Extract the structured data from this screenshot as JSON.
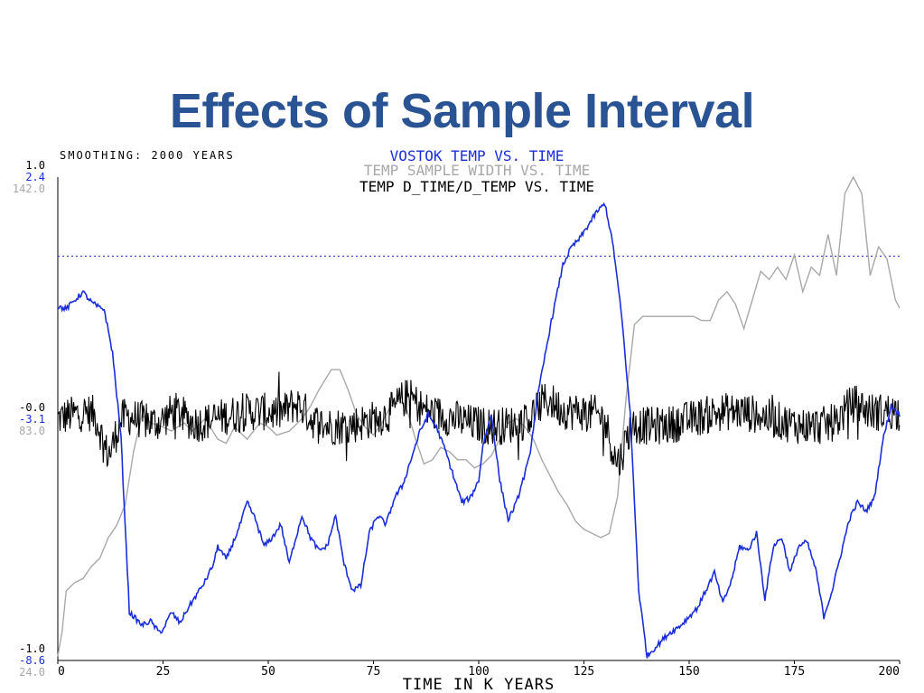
{
  "page": {
    "title": "Effects of Sample Interval"
  },
  "colors": {
    "title": "#2a5394",
    "temp": "#1a2ed8",
    "width": "#a8a8a8",
    "dtime_dtemp": "#000000",
    "dotted_reference": "#1a2ed8"
  },
  "chart_data": {
    "type": "line",
    "smoothing_label": "SMOOTHING: 2000 YEARS",
    "xlabel": "TIME IN K YEARS",
    "xlim": [
      0,
      200
    ],
    "x_ticks": [
      "0",
      "25",
      "50",
      "75",
      "100",
      "125",
      "150",
      "175",
      "200"
    ],
    "legend": [
      "VOSTOK TEMP VS. TIME",
      "TEMP SAMPLE WIDTH VS. TIME",
      "TEMP D_TIME/D_TEMP VS. TIME"
    ],
    "y_axis_labels": {
      "top": [
        "1.0",
        "2.4",
        "142.0"
      ],
      "middle": [
        "-0.0",
        "-3.1",
        "83.0"
      ],
      "bottom": [
        "-1.0",
        "-8.6",
        "24.0"
      ]
    },
    "reference_line_y": 0.6,
    "series": [
      {
        "name": "VOSTOK TEMP VS. TIME",
        "ylim": [
          -8.6,
          2.4
        ],
        "x": [
          0,
          2,
          4,
          6,
          8,
          10,
          11,
          13,
          15,
          17,
          20,
          22,
          24,
          25,
          27,
          29,
          31,
          33,
          35,
          37,
          38,
          40,
          43,
          45,
          47,
          49,
          51,
          53,
          55,
          56,
          58,
          60,
          62,
          64,
          66,
          68,
          70,
          72,
          74,
          76,
          78,
          80,
          82,
          84,
          86,
          88,
          90,
          92,
          94,
          96,
          98,
          100,
          101,
          103,
          105,
          107,
          109,
          112,
          114,
          117,
          120,
          122,
          124,
          126,
          128,
          130,
          132,
          134,
          136,
          138,
          140,
          143,
          145,
          148,
          150,
          152,
          154,
          156,
          158,
          160,
          162,
          164,
          166,
          168,
          170,
          172,
          174,
          176,
          178,
          180,
          182,
          184,
          186,
          188,
          190,
          192,
          194,
          196,
          198,
          200
        ],
        "y": [
          -0.55,
          -0.6,
          -0.4,
          -0.22,
          -0.45,
          -0.58,
          -0.6,
          -1.6,
          -3.5,
          -7.5,
          -7.8,
          -7.7,
          -7.95,
          -7.9,
          -7.5,
          -7.75,
          -7.4,
          -7.1,
          -6.8,
          -6.4,
          -6.0,
          -6.3,
          -5.6,
          -5.0,
          -5.4,
          -6.0,
          -5.8,
          -5.5,
          -6.4,
          -6.0,
          -5.3,
          -5.8,
          -6.1,
          -6.0,
          -5.3,
          -6.4,
          -7.0,
          -6.9,
          -5.7,
          -5.3,
          -5.5,
          -4.9,
          -4.6,
          -4.0,
          -3.4,
          -3.0,
          -3.3,
          -3.8,
          -4.4,
          -5.0,
          -4.9,
          -4.5,
          -3.7,
          -3.0,
          -4.5,
          -5.4,
          -5.0,
          -4.0,
          -2.6,
          -1.0,
          0.4,
          0.8,
          1.0,
          1.3,
          1.6,
          1.8,
          0.8,
          -0.8,
          -3.0,
          -7.0,
          -8.5,
          -8.2,
          -8.0,
          -7.8,
          -7.6,
          -7.4,
          -7.0,
          -6.6,
          -7.3,
          -6.8,
          -6.0,
          -6.1,
          -5.7,
          -7.2,
          -6.0,
          -5.8,
          -6.6,
          -6.0,
          -5.9,
          -6.5,
          -7.6,
          -7.0,
          -6.2,
          -5.4,
          -5.0,
          -5.2,
          -4.9,
          -3.6,
          -2.8,
          -3.0
        ]
      },
      {
        "name": "TEMP SAMPLE WIDTH VS. TIME",
        "ylim": [
          24.0,
          142.0
        ],
        "x": [
          0,
          1,
          2,
          4,
          6,
          8,
          10,
          12,
          14,
          16,
          18,
          20,
          22,
          25,
          27,
          30,
          32,
          35,
          38,
          40,
          42,
          45,
          48,
          50,
          52,
          55,
          58,
          60,
          62,
          65,
          67,
          69,
          71,
          73,
          75,
          77,
          79,
          81,
          83,
          85,
          87,
          89,
          91,
          93,
          95,
          97,
          99,
          101,
          103,
          105,
          107,
          109,
          111,
          113,
          115,
          117,
          119,
          121,
          123,
          125,
          127,
          129,
          131,
          133,
          135,
          137,
          139,
          141,
          143,
          145,
          147,
          149,
          151,
          153,
          155,
          157,
          159,
          161,
          163,
          165,
          167,
          169,
          171,
          173,
          175,
          177,
          179,
          181,
          183,
          185,
          187,
          189,
          191,
          193,
          195,
          197,
          199,
          200
        ],
        "y": [
          25,
          31,
          41,
          43,
          44,
          47,
          49,
          54,
          57,
          62,
          75,
          84,
          82,
          81,
          80,
          82,
          80,
          83,
          78,
          77,
          81,
          78,
          82,
          81,
          79,
          80,
          83,
          86,
          90,
          95,
          95,
          90,
          84,
          81,
          79,
          82,
          86,
          88,
          85,
          78,
          72,
          73,
          76,
          75,
          73,
          73,
          71,
          72,
          74,
          78,
          82,
          83,
          81,
          78,
          73,
          69,
          65,
          62,
          58,
          56,
          55,
          54,
          55,
          64,
          88,
          106,
          108,
          108,
          108,
          108,
          108,
          108,
          108,
          107,
          107,
          112,
          114,
          111,
          105,
          112,
          119,
          117,
          120,
          117,
          123,
          114,
          120,
          118,
          128,
          118,
          138,
          142,
          138,
          118,
          125,
          122,
          112,
          110
        ]
      },
      {
        "name": "TEMP D_TIME/D_TEMP VS. TIME",
        "ylim": [
          -1.0,
          1.0
        ],
        "mean_level": 0.0,
        "x_low_excursions": [
          12,
          133
        ],
        "x_high_excursions": [
          28,
          57,
          83,
          116,
          189
        ]
      }
    ]
  }
}
